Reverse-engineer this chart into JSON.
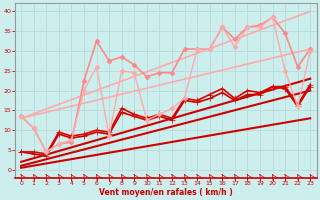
{
  "bg_color": "#cceeed",
  "grid_color": "#aadddd",
  "xlabel": "Vent moyen/en rafales ( km/h )",
  "xlabel_color": "#cc0000",
  "tick_color": "#cc0000",
  "axis_color": "#999999",
  "xlim": [
    -0.5,
    23.5
  ],
  "ylim": [
    -2,
    42
  ],
  "yticks": [
    0,
    5,
    10,
    15,
    20,
    25,
    30,
    35,
    40
  ],
  "xticks": [
    0,
    1,
    2,
    3,
    4,
    5,
    6,
    7,
    8,
    9,
    10,
    11,
    12,
    13,
    14,
    15,
    16,
    17,
    18,
    19,
    20,
    21,
    22,
    23
  ],
  "series": [
    {
      "x": [
        0,
        23
      ],
      "y": [
        0.5,
        13.0
      ],
      "color": "#cc0000",
      "lw": 1.5,
      "marker": null,
      "ms": 0
    },
    {
      "x": [
        0,
        23
      ],
      "y": [
        1.0,
        20.0
      ],
      "color": "#cc0000",
      "lw": 1.5,
      "marker": null,
      "ms": 0
    },
    {
      "x": [
        0,
        23
      ],
      "y": [
        2.0,
        23.0
      ],
      "color": "#cc0000",
      "lw": 1.5,
      "marker": null,
      "ms": 0
    },
    {
      "x": [
        0,
        1,
        2,
        3,
        4,
        5,
        6,
        7,
        8,
        9,
        10,
        11,
        12,
        13,
        14,
        15,
        16,
        17,
        18,
        19,
        20,
        21,
        22,
        23
      ],
      "y": [
        4.5,
        4.0,
        3.5,
        9.0,
        8.0,
        8.5,
        9.5,
        9.0,
        14.5,
        13.5,
        12.5,
        13.5,
        12.5,
        17.5,
        17.0,
        18.0,
        19.5,
        17.5,
        19.0,
        19.0,
        21.0,
        20.5,
        16.0,
        21.0
      ],
      "color": "#cc0000",
      "lw": 1.2,
      "marker": "+",
      "ms": 4
    },
    {
      "x": [
        0,
        1,
        2,
        3,
        4,
        5,
        6,
        7,
        8,
        9,
        10,
        11,
        12,
        13,
        14,
        15,
        16,
        17,
        18,
        19,
        20,
        21,
        22,
        23
      ],
      "y": [
        4.5,
        4.5,
        4.0,
        9.5,
        8.5,
        9.0,
        10.0,
        9.5,
        15.5,
        14.0,
        13.0,
        14.0,
        13.0,
        18.0,
        17.5,
        19.0,
        20.5,
        18.0,
        20.0,
        19.5,
        21.0,
        21.0,
        16.5,
        21.5
      ],
      "color": "#dd0000",
      "lw": 1.2,
      "marker": "+",
      "ms": 4
    },
    {
      "x": [
        0,
        23
      ],
      "y": [
        13.0,
        30.5
      ],
      "color": "#ffaaaa",
      "lw": 1.2,
      "marker": null,
      "ms": 0
    },
    {
      "x": [
        0,
        23
      ],
      "y": [
        13.0,
        40.0
      ],
      "color": "#ffaaaa",
      "lw": 1.2,
      "marker": null,
      "ms": 0
    },
    {
      "x": [
        0,
        1,
        2,
        3,
        4,
        5,
        6,
        7,
        8,
        9,
        10,
        11,
        12,
        13,
        14,
        15,
        16,
        17,
        18,
        19,
        20,
        21,
        22,
        23
      ],
      "y": [
        13.5,
        10.5,
        4.5,
        6.5,
        7.0,
        22.5,
        32.5,
        27.5,
        28.5,
        26.5,
        23.5,
        24.5,
        24.5,
        30.5,
        30.5,
        30.5,
        36.0,
        33.0,
        36.0,
        36.5,
        38.5,
        34.5,
        26.0,
        30.5
      ],
      "color": "#ff8888",
      "lw": 1.2,
      "marker": "D",
      "ms": 2.5
    },
    {
      "x": [
        0,
        1,
        2,
        3,
        4,
        5,
        6,
        7,
        8,
        9,
        10,
        11,
        12,
        13,
        14,
        15,
        16,
        17,
        18,
        19,
        20,
        21,
        22,
        23
      ],
      "y": [
        13.5,
        10.5,
        4.5,
        6.5,
        7.5,
        20.0,
        26.0,
        8.5,
        25.0,
        24.5,
        12.5,
        14.0,
        15.5,
        18.0,
        30.5,
        30.5,
        36.0,
        31.0,
        36.0,
        36.0,
        38.5,
        25.0,
        16.0,
        30.0
      ],
      "color": "#ffaaaa",
      "lw": 1.0,
      "marker": "D",
      "ms": 2.5
    }
  ]
}
